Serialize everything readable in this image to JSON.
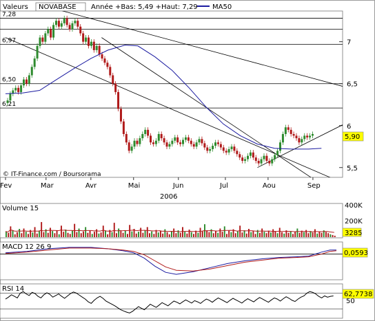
{
  "header": {
    "valeurs_label": "Valeurs",
    "symbol": "NOVABASE",
    "annee_label": "Année +Bas: 5,49 +Haut: 7,29",
    "ma_label": "MA50"
  },
  "watermark": "© IT-Finance.com / Boursorama",
  "colors": {
    "up": "#2e8b2e",
    "down": "#b01a1a",
    "ma": "#1a1aa0",
    "trend": "#000000",
    "highlight": "#ffff00",
    "panel_bg": "#f2f2f2",
    "signal": "#b01a1a"
  },
  "main_chart": {
    "type": "candlestick",
    "year_label": "2006",
    "months": [
      "Fev",
      "Mar",
      "Avr",
      "Mai",
      "Jun",
      "Jul",
      "Aou",
      "Sep"
    ],
    "left_levels": [
      "7,28",
      "6,97",
      "6,50",
      "6,21"
    ],
    "right_ticks": [
      "7",
      "6,5",
      "6",
      "5,5"
    ],
    "last_price": "5,90",
    "ylim": [
      5.4,
      7.35
    ],
    "xlim": [
      0,
      155
    ],
    "month_start_days": [
      0,
      19,
      40,
      60,
      81,
      103,
      123,
      144
    ],
    "hlines": [
      7.28,
      7.15,
      6.97,
      6.5,
      6.21
    ],
    "trendlines": [
      {
        "d0": 0,
        "p0": 7.05,
        "d1": 155,
        "p1": 5.35
      },
      {
        "d0": 0,
        "p0": 7.55,
        "d1": 165,
        "p1": 6.42
      },
      {
        "d0": 45,
        "p0": 7.05,
        "d1": 145,
        "p1": 5.35
      },
      {
        "d0": 118,
        "p0": 5.5,
        "d1": 165,
        "p1": 6.1
      }
    ],
    "ma50": [
      [
        0,
        6.38
      ],
      [
        8,
        6.39
      ],
      [
        16,
        6.42
      ],
      [
        24,
        6.55
      ],
      [
        32,
        6.68
      ],
      [
        40,
        6.8
      ],
      [
        48,
        6.9
      ],
      [
        56,
        6.96
      ],
      [
        62,
        6.95
      ],
      [
        70,
        6.82
      ],
      [
        78,
        6.66
      ],
      [
        86,
        6.45
      ],
      [
        94,
        6.22
      ],
      [
        102,
        6.02
      ],
      [
        110,
        5.88
      ],
      [
        118,
        5.78
      ],
      [
        126,
        5.73
      ],
      [
        134,
        5.72
      ],
      [
        142,
        5.72
      ],
      [
        148,
        5.73
      ]
    ]
  },
  "volume": {
    "label": "Volume 15",
    "ticks": [
      "400K",
      "200K"
    ],
    "last_value": "3285",
    "max": 450000,
    "values_k": [
      80,
      60,
      150,
      95,
      40,
      70,
      115,
      55,
      120,
      75,
      45,
      100,
      65,
      140,
      50,
      90,
      210,
      70,
      110,
      60,
      130,
      85,
      55,
      95,
      40,
      160,
      75,
      105,
      60,
      45,
      90,
      185,
      70,
      120,
      55,
      80,
      140,
      60,
      95,
      45,
      75,
      110,
      50,
      65,
      160,
      90,
      40,
      100,
      70,
      200,
      55,
      120,
      85,
      60,
      95,
      45,
      170,
      80,
      115,
      50,
      75,
      130,
      60,
      95,
      140,
      55,
      80,
      45,
      100,
      65,
      90,
      50,
      110,
      70,
      40,
      85,
      120,
      55,
      95,
      60,
      140,
      75,
      50,
      105,
      70,
      45,
      90,
      60,
      130,
      80,
      180,
      95,
      70,
      110,
      55,
      85,
      60,
      120,
      75,
      150,
      45,
      90,
      70,
      110,
      55,
      80,
      160,
      65,
      95,
      50,
      115,
      70,
      85,
      45,
      100,
      60,
      120,
      75,
      55,
      90,
      65,
      110,
      80,
      55,
      130,
      70,
      50,
      95,
      60,
      85,
      45,
      75,
      120,
      60,
      90,
      70,
      100,
      55,
      85,
      65,
      110,
      50,
      80,
      60,
      95,
      70,
      55,
      40,
      30,
      20
    ]
  },
  "macd": {
    "label": "MACD 12 26 9",
    "last_value": "0,0593",
    "ylim": [
      -0.35,
      0.15
    ],
    "zero": 0,
    "line": [
      [
        0,
        0.02
      ],
      [
        10,
        0.04
      ],
      [
        20,
        0.08
      ],
      [
        30,
        0.1
      ],
      [
        40,
        0.1
      ],
      [
        48,
        0.08
      ],
      [
        55,
        0.05
      ],
      [
        60,
        0.02
      ],
      [
        65,
        -0.06
      ],
      [
        70,
        -0.18
      ],
      [
        75,
        -0.27
      ],
      [
        80,
        -0.3
      ],
      [
        88,
        -0.26
      ],
      [
        96,
        -0.2
      ],
      [
        104,
        -0.14
      ],
      [
        112,
        -0.1
      ],
      [
        120,
        -0.07
      ],
      [
        128,
        -0.05
      ],
      [
        136,
        -0.04
      ],
      [
        142,
        -0.03
      ],
      [
        148,
        0.03
      ],
      [
        152,
        0.06
      ],
      [
        155,
        0.06
      ]
    ],
    "signal": [
      [
        0,
        0.01
      ],
      [
        10,
        0.03
      ],
      [
        20,
        0.06
      ],
      [
        30,
        0.09
      ],
      [
        40,
        0.09
      ],
      [
        48,
        0.08
      ],
      [
        55,
        0.06
      ],
      [
        60,
        0.04
      ],
      [
        65,
        -0.01
      ],
      [
        70,
        -0.1
      ],
      [
        75,
        -0.19
      ],
      [
        80,
        -0.24
      ],
      [
        88,
        -0.25
      ],
      [
        96,
        -0.22
      ],
      [
        104,
        -0.17
      ],
      [
        112,
        -0.12
      ],
      [
        120,
        -0.09
      ],
      [
        128,
        -0.06
      ],
      [
        136,
        -0.05
      ],
      [
        142,
        -0.04
      ],
      [
        148,
        0.0
      ],
      [
        152,
        0.04
      ],
      [
        155,
        0.05
      ]
    ]
  },
  "rsi": {
    "label": "RSI 14",
    "last_value": "62,7738",
    "tick": "50",
    "ylim": [
      10,
      90
    ],
    "values": [
      55,
      60,
      66,
      62,
      58,
      70,
      74,
      68,
      64,
      72,
      69,
      62,
      58,
      66,
      71,
      67,
      60,
      64,
      68,
      62,
      57,
      63,
      69,
      73,
      70,
      65,
      60,
      55,
      48,
      44,
      52,
      58,
      62,
      57,
      50,
      46,
      42,
      38,
      33,
      28,
      25,
      22,
      20,
      24,
      30,
      36,
      32,
      28,
      35,
      42,
      38,
      34,
      40,
      46,
      42,
      38,
      44,
      50,
      47,
      43,
      48,
      53,
      49,
      45,
      51,
      48,
      44,
      50,
      55,
      52,
      47,
      53,
      58,
      54,
      50,
      46,
      52,
      57,
      53,
      49,
      45,
      51,
      56,
      52,
      48,
      54,
      59,
      55,
      51,
      47,
      53,
      58,
      55,
      50,
      56,
      61,
      57,
      52,
      49,
      55,
      60,
      63,
      70,
      74,
      72,
      68,
      62,
      58,
      63,
      60,
      62,
      63
    ]
  }
}
